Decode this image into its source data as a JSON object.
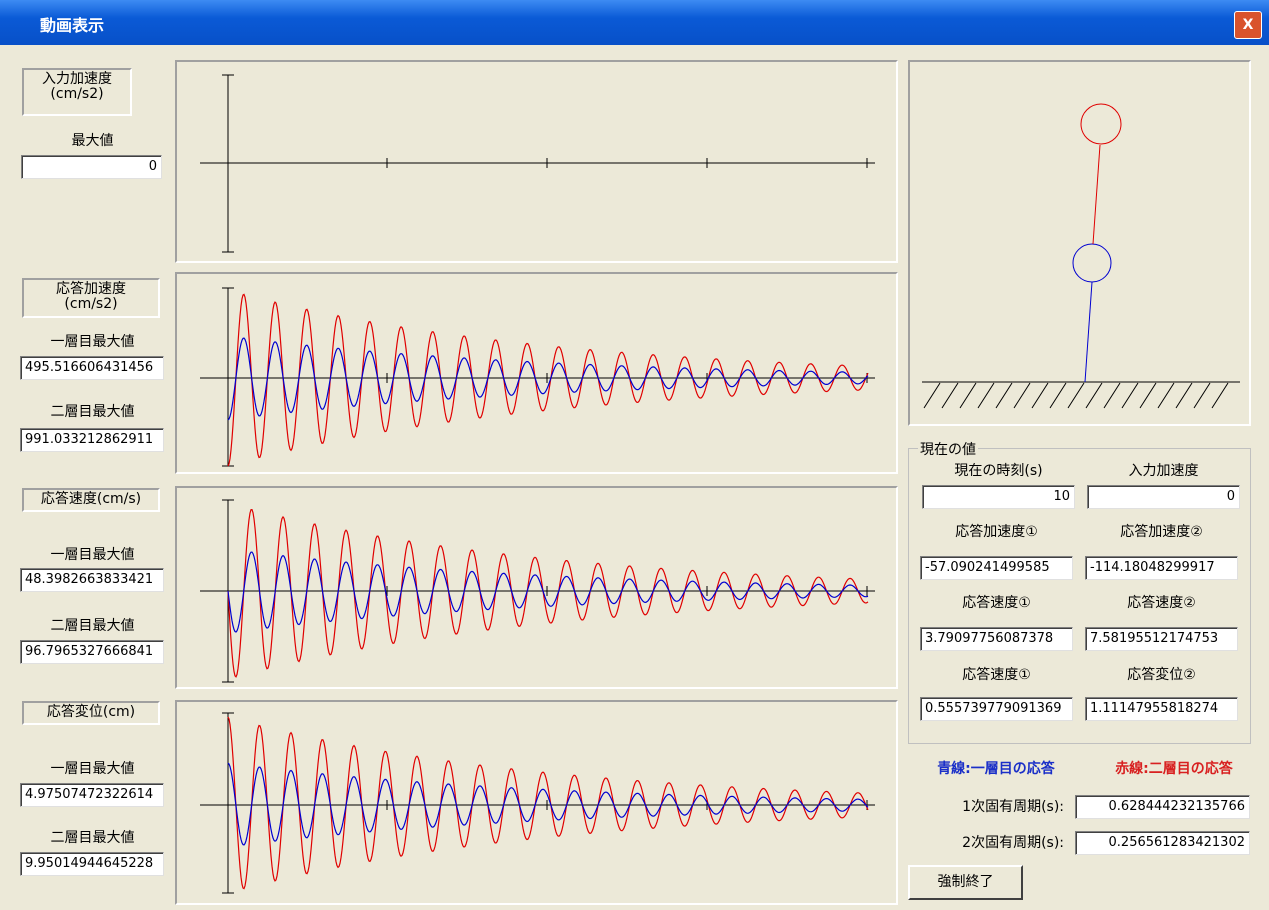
{
  "window": {
    "title": "動画表示",
    "close": "X"
  },
  "input_acceleration": {
    "heading_line1": "入力加速度",
    "heading_line2": "(cm/s2)",
    "max_label": "最大値",
    "max_value": "0"
  },
  "response_panels": [
    {
      "heading_line1": "応答加速度",
      "heading_line2": "(cm/s2)",
      "floor1_label": "一層目最大値",
      "floor1_value": "495.516606431456",
      "floor2_label": "二層目最大値",
      "floor2_value": "991.033212862911"
    },
    {
      "heading_line1": "応答速度(cm/s)",
      "floor1_label": "一層目最大値",
      "floor1_value": "48.3982663833421",
      "floor2_label": "二層目最大値",
      "floor2_value": "96.7965327666841"
    },
    {
      "heading_line1": "応答変位(cm)",
      "floor1_label": "一層目最大値",
      "floor1_value": "4.97507472322614",
      "floor2_label": "二層目最大値",
      "floor2_value": "9.95014944645228"
    }
  ],
  "current_values": {
    "group_title": "現在の値",
    "fields": [
      {
        "label": "現在の時刻(s)",
        "value": "10"
      },
      {
        "label": "入力加速度",
        "value": "0"
      },
      {
        "label": "応答加速度①",
        "value": "-57.090241499585"
      },
      {
        "label": "応答加速度②",
        "value": "-114.18048299917"
      },
      {
        "label": "応答速度①",
        "value": "3.79097756087378"
      },
      {
        "label": "応答速度②",
        "value": "7.58195512174753"
      },
      {
        "label": "応答速度①",
        "value": "0.555739779091369"
      },
      {
        "label": "応答変位②",
        "value": "1.11147955818274"
      }
    ]
  },
  "legend": {
    "blue": "青線:一層目の応答",
    "red": "赤線:二層目の応答"
  },
  "periods": [
    {
      "label": "1次固有周期(s):",
      "value": "0.628444232135766"
    },
    {
      "label": "2次固有周期(s):",
      "value": "0.256561283421302"
    }
  ],
  "button": "強制終了"
}
